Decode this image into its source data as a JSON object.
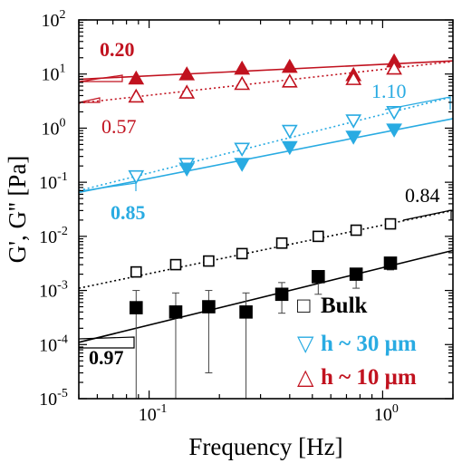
{
  "chart_data": {
    "type": "scatter",
    "xlabel": "Frequency [Hz]",
    "ylabel": "G', G'' [Pa]",
    "xscale": "log",
    "yscale": "log",
    "xlim": [
      0.05,
      2
    ],
    "ylim": [
      1e-05,
      100
    ],
    "x_tick_labels": [
      {
        "value": 0.1,
        "base": "10",
        "exp": "-1"
      },
      {
        "value": 1,
        "base": "10",
        "exp": "0"
      }
    ],
    "y_tick_labels": [
      {
        "value": 1e-05,
        "base": "10",
        "exp": "-5"
      },
      {
        "value": 0.0001,
        "base": "10",
        "exp": "-4"
      },
      {
        "value": 0.001,
        "base": "10",
        "exp": "-3"
      },
      {
        "value": 0.01,
        "base": "10",
        "exp": "-2"
      },
      {
        "value": 0.1,
        "base": "10",
        "exp": "-1"
      },
      {
        "value": 1,
        "base": "10",
        "exp": "0"
      },
      {
        "value": 10,
        "base": "10",
        "exp": "1"
      },
      {
        "value": 100,
        "base": "10",
        "exp": "2"
      }
    ],
    "legend": {
      "placement": "bottom-right",
      "items": [
        {
          "symbol": "□",
          "label": "Bulk",
          "color": "#000000"
        },
        {
          "symbol": "▽",
          "label": "h ~ 30 μm",
          "color": "#29abe2"
        },
        {
          "symbol": "△",
          "label": "h ~ 10 μm",
          "color": "#c1121f"
        }
      ]
    },
    "series": [
      {
        "group": "h ~ 10 μm",
        "marker": "triangle-up",
        "filled": true,
        "color": "#c1121f",
        "x": [
          0.088,
          0.145,
          0.25,
          0.4,
          0.75,
          1.12
        ],
        "y": [
          8.2,
          9.8,
          12.5,
          13.5,
          9.5,
          17.0
        ]
      },
      {
        "group": "h ~ 10 μm",
        "marker": "triangle-up",
        "filled": false,
        "color": "#c1121f",
        "x": [
          0.088,
          0.145,
          0.25,
          0.4,
          0.75,
          1.12
        ],
        "y": [
          3.8,
          4.5,
          6.5,
          7.2,
          8.0,
          12.5
        ]
      },
      {
        "group": "h ~ 30 μm",
        "marker": "triangle-down",
        "filled": false,
        "color": "#29abe2",
        "x": [
          0.088,
          0.145,
          0.25,
          0.4,
          0.75,
          1.12
        ],
        "y": [
          0.13,
          0.22,
          0.42,
          0.9,
          1.4,
          2.0
        ]
      },
      {
        "group": "h ~ 30 μm",
        "marker": "triangle-down",
        "filled": true,
        "color": "#29abe2",
        "x": [
          0.145,
          0.25,
          0.4,
          0.75,
          1.12
        ],
        "y": [
          0.18,
          0.22,
          0.45,
          0.7,
          0.95
        ]
      },
      {
        "group": "Bulk",
        "marker": "square",
        "filled": false,
        "color": "#000000",
        "x": [
          0.088,
          0.13,
          0.18,
          0.25,
          0.37,
          0.53,
          0.77,
          1.08
        ],
        "y": [
          0.0022,
          0.003,
          0.0035,
          0.0048,
          0.0075,
          0.01,
          0.013,
          0.017
        ]
      },
      {
        "group": "Bulk",
        "marker": "square",
        "filled": true,
        "color": "#000000",
        "x": [
          0.088,
          0.13,
          0.18,
          0.26,
          0.37,
          0.53,
          0.77,
          1.08
        ],
        "y": [
          0.00048,
          0.0004,
          0.0005,
          0.0004,
          0.00085,
          0.0018,
          0.002,
          0.0032
        ],
        "err_low": [
          1e-05,
          1e-05,
          3e-05,
          1e-05,
          0.00038,
          0.00085,
          0.0011,
          0.0024
        ],
        "err_high": [
          0.001,
          0.0009,
          0.001,
          0.0009,
          0.0014,
          0.0019,
          0.0022,
          0.0035
        ]
      }
    ],
    "fit_lines": [
      {
        "color": "#c1121f",
        "style": "solid",
        "x": [
          0.05,
          2
        ],
        "y": [
          8.0,
          17.5
        ]
      },
      {
        "color": "#c1121f",
        "style": "dotted",
        "x": [
          0.05,
          2
        ],
        "y": [
          2.9,
          17.0
        ]
      },
      {
        "color": "#29abe2",
        "style": "dotted",
        "x": [
          0.05,
          2
        ],
        "y": [
          0.07,
          3.8
        ]
      },
      {
        "color": "#29abe2",
        "style": "solid",
        "x": [
          0.05,
          2
        ],
        "y": [
          0.065,
          1.5
        ]
      },
      {
        "color": "#000000",
        "style": "dotted",
        "x": [
          0.05,
          2
        ],
        "y": [
          0.0011,
          0.03
        ]
      },
      {
        "color": "#000000",
        "style": "solid",
        "x": [
          0.05,
          2
        ],
        "y": [
          0.00011,
          0.0055
        ]
      }
    ],
    "slope_annotations": [
      {
        "text": "0.20",
        "color": "#c1121f",
        "bold": true
      },
      {
        "text": "0.57",
        "color": "#c1121f",
        "bold": false
      },
      {
        "text": "1.10",
        "color": "#29abe2",
        "bold": false
      },
      {
        "text": "0.85",
        "color": "#29abe2",
        "bold": true
      },
      {
        "text": "0.84",
        "color": "#000000",
        "bold": false
      },
      {
        "text": "0.97",
        "color": "#000000",
        "bold": true
      }
    ]
  }
}
